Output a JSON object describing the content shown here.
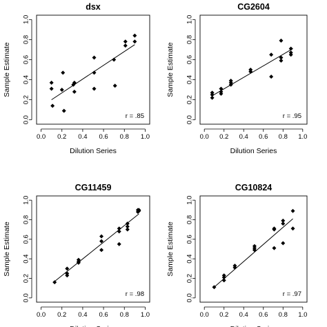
{
  "chart_data": [
    {
      "type": "scatter",
      "title": "dsx",
      "xlabel": "Dilution Series",
      "ylabel": "Sample Estimate",
      "xlim": [
        0,
        1
      ],
      "ylim": [
        0,
        1
      ],
      "xticks": [
        "0.0",
        "0.2",
        "0.4",
        "0.6",
        "0.8",
        "1.0"
      ],
      "yticks": [
        "0.0",
        "0.2",
        "0.4",
        "0.6",
        "0.8",
        "1.0"
      ],
      "annotation": "r = .85",
      "fit_line": [
        [
          0.1,
          0.2
        ],
        [
          0.9,
          0.75
        ]
      ],
      "points": [
        [
          0.1,
          0.37
        ],
        [
          0.1,
          0.31
        ],
        [
          0.11,
          0.14
        ],
        [
          0.2,
          0.3
        ],
        [
          0.21,
          0.47
        ],
        [
          0.22,
          0.09
        ],
        [
          0.31,
          0.35
        ],
        [
          0.32,
          0.37
        ],
        [
          0.32,
          0.28
        ],
        [
          0.51,
          0.62
        ],
        [
          0.51,
          0.47
        ],
        [
          0.51,
          0.31
        ],
        [
          0.7,
          0.6
        ],
        [
          0.71,
          0.34
        ],
        [
          0.81,
          0.78
        ],
        [
          0.81,
          0.74
        ],
        [
          0.9,
          0.84
        ],
        [
          0.9,
          0.78
        ]
      ]
    },
    {
      "type": "scatter",
      "title": "CG2604",
      "xlabel": "Dilution Series",
      "ylabel": "Sample Estimate",
      "xlim": [
        0,
        1
      ],
      "ylim": [
        0,
        1
      ],
      "xticks": [
        "0.0",
        "0.2",
        "0.4",
        "0.6",
        "0.8",
        "1.0"
      ],
      "yticks": [
        "0.0",
        "0.2",
        "0.4",
        "0.6",
        "0.8",
        "1.0"
      ],
      "annotation": "r = .95",
      "fit_line": [
        [
          0.08,
          0.24
        ],
        [
          0.9,
          0.71
        ]
      ],
      "points": [
        [
          0.08,
          0.27
        ],
        [
          0.08,
          0.25
        ],
        [
          0.08,
          0.22
        ],
        [
          0.17,
          0.31
        ],
        [
          0.17,
          0.28
        ],
        [
          0.17,
          0.26
        ],
        [
          0.27,
          0.39
        ],
        [
          0.27,
          0.37
        ],
        [
          0.27,
          0.35
        ],
        [
          0.47,
          0.5
        ],
        [
          0.47,
          0.48
        ],
        [
          0.68,
          0.65
        ],
        [
          0.68,
          0.43
        ],
        [
          0.78,
          0.79
        ],
        [
          0.78,
          0.62
        ],
        [
          0.78,
          0.59
        ],
        [
          0.88,
          0.71
        ],
        [
          0.88,
          0.67
        ],
        [
          0.88,
          0.65
        ]
      ]
    },
    {
      "type": "scatter",
      "title": "CG11459",
      "xlabel": "Dilution Series",
      "ylabel": "Sample Estimate",
      "xlim": [
        0,
        1
      ],
      "ylim": [
        0,
        1
      ],
      "xticks": [
        "0.0",
        "0.2",
        "0.4",
        "0.6",
        "0.8",
        "1.0"
      ],
      "yticks": [
        "0.0",
        "0.2",
        "0.4",
        "0.6",
        "0.8",
        "1.0"
      ],
      "annotation": "r = .98",
      "fit_line": [
        [
          0.12,
          0.16
        ],
        [
          0.94,
          0.86
        ]
      ],
      "points": [
        [
          0.13,
          0.16
        ],
        [
          0.25,
          0.3
        ],
        [
          0.25,
          0.25
        ],
        [
          0.25,
          0.23
        ],
        [
          0.36,
          0.39
        ],
        [
          0.36,
          0.37
        ],
        [
          0.36,
          0.36
        ],
        [
          0.58,
          0.63
        ],
        [
          0.58,
          0.58
        ],
        [
          0.58,
          0.49
        ],
        [
          0.75,
          0.71
        ],
        [
          0.75,
          0.68
        ],
        [
          0.75,
          0.55
        ],
        [
          0.83,
          0.76
        ],
        [
          0.83,
          0.73
        ],
        [
          0.83,
          0.7
        ],
        [
          0.93,
          0.88
        ],
        [
          0.93,
          0.9
        ],
        [
          0.94,
          0.89
        ],
        [
          0.94,
          0.9
        ]
      ]
    },
    {
      "type": "scatter",
      "title": "CG10824",
      "xlabel": "Dilution Series",
      "ylabel": "Sample Estimate",
      "xlim": [
        0,
        1
      ],
      "ylim": [
        0,
        1
      ],
      "xticks": [
        "0.0",
        "0.2",
        "0.4",
        "0.6",
        "0.8",
        "1.0"
      ],
      "yticks": [
        "0.0",
        "0.2",
        "0.4",
        "0.6",
        "0.8",
        "1.0"
      ],
      "annotation": "r = .97",
      "fit_line": [
        [
          0.1,
          0.11
        ],
        [
          0.9,
          0.81
        ]
      ],
      "points": [
        [
          0.1,
          0.11
        ],
        [
          0.2,
          0.23
        ],
        [
          0.2,
          0.21
        ],
        [
          0.2,
          0.18
        ],
        [
          0.31,
          0.33
        ],
        [
          0.31,
          0.31
        ],
        [
          0.51,
          0.53
        ],
        [
          0.51,
          0.51
        ],
        [
          0.51,
          0.49
        ],
        [
          0.71,
          0.71
        ],
        [
          0.71,
          0.7
        ],
        [
          0.71,
          0.51
        ],
        [
          0.8,
          0.79
        ],
        [
          0.8,
          0.76
        ],
        [
          0.8,
          0.56
        ],
        [
          0.9,
          0.89
        ],
        [
          0.9,
          0.71
        ]
      ]
    }
  ]
}
